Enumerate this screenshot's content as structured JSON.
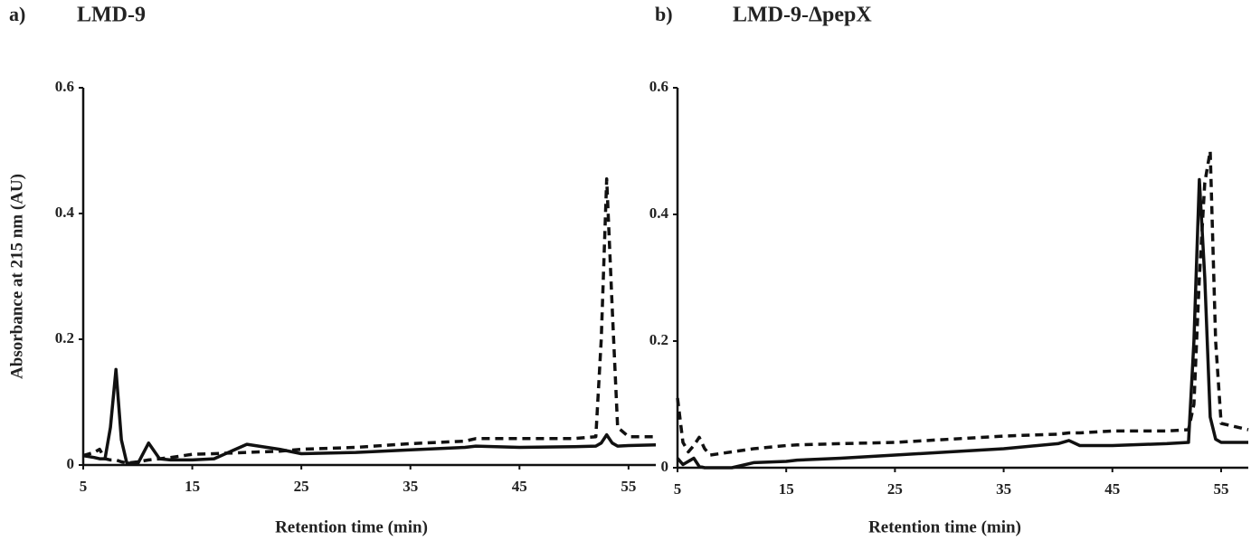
{
  "chart_data": [
    {
      "type": "line",
      "label": "a)",
      "title": "LMD-9",
      "y_label": "Absorbance at 215 nm (AU)",
      "x_label": "Retention time (min)",
      "xlim": [
        5,
        57.5
      ],
      "xticks": [
        5,
        15,
        25,
        35,
        45,
        55
      ],
      "ylim": [
        0,
        0.6
      ],
      "yticks": [
        0,
        0.2,
        0.4,
        0.6
      ],
      "x": [
        5,
        6,
        6.5,
        7,
        7.5,
        8,
        8.5,
        9,
        10,
        11,
        12,
        13,
        15,
        17,
        20,
        23,
        25,
        30,
        35,
        40,
        41,
        45,
        50,
        52,
        52.5,
        53,
        53.5,
        54,
        55,
        57.5
      ],
      "series": [
        {
          "color": "#111111",
          "dash": false,
          "values": [
            0.015,
            0.012,
            0.01,
            0.01,
            0.06,
            0.152,
            0.04,
            0.003,
            0.002,
            0.035,
            0.01,
            0.008,
            0.008,
            0.01,
            0.033,
            0.025,
            0.018,
            0.02,
            0.024,
            0.028,
            0.03,
            0.028,
            0.029,
            0.03,
            0.035,
            0.048,
            0.035,
            0.03,
            0.031,
            0.032
          ]
        },
        {
          "color": "#111111",
          "dash": true,
          "values": [
            0.015,
            0.02,
            0.025,
            0.01,
            0.008,
            0.008,
            0.005,
            0.003,
            0.005,
            0.008,
            0.01,
            0.012,
            0.017,
            0.018,
            0.02,
            0.022,
            0.025,
            0.028,
            0.034,
            0.038,
            0.042,
            0.042,
            0.042,
            0.045,
            0.2,
            0.455,
            0.25,
            0.06,
            0.045,
            0.045
          ]
        }
      ]
    },
    {
      "type": "line",
      "label": "b)",
      "title": "LMD-9-ΔpepX",
      "x_label": "Retention time (min)",
      "xlim": [
        5,
        57.5
      ],
      "xticks": [
        5,
        15,
        25,
        35,
        45,
        55
      ],
      "ylim": [
        0,
        0.6
      ],
      "yticks": [
        0,
        0.2,
        0.4,
        0.6
      ],
      "x": [
        5,
        5.5,
        6,
        6.5,
        7,
        7.5,
        8,
        10,
        12,
        15,
        16,
        20,
        25,
        30,
        35,
        40,
        41,
        42,
        45,
        50,
        52,
        52.5,
        53,
        53.5,
        54,
        54.5,
        55,
        57.5
      ],
      "series": [
        {
          "color": "#111111",
          "dash": false,
          "values": [
            0.015,
            0.005,
            0.01,
            0.015,
            0.002,
            0,
            0,
            0,
            0.008,
            0.01,
            0.012,
            0.015,
            0.02,
            0.025,
            0.03,
            0.038,
            0.043,
            0.035,
            0.035,
            0.038,
            0.04,
            0.2,
            0.455,
            0.3,
            0.08,
            0.045,
            0.04,
            0.04
          ]
        },
        {
          "color": "#111111",
          "dash": true,
          "values": [
            0.11,
            0.04,
            0.025,
            0.035,
            0.048,
            0.03,
            0.02,
            0.025,
            0.03,
            0.035,
            0.036,
            0.038,
            0.04,
            0.045,
            0.05,
            0.053,
            0.055,
            0.055,
            0.058,
            0.058,
            0.06,
            0.1,
            0.3,
            0.45,
            0.5,
            0.2,
            0.07,
            0.06
          ]
        }
      ]
    }
  ]
}
